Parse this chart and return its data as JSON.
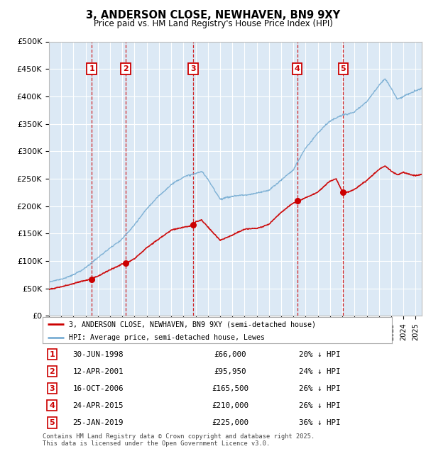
{
  "title1": "3, ANDERSON CLOSE, NEWHAVEN, BN9 9XY",
  "title2": "Price paid vs. HM Land Registry's House Price Index (HPI)",
  "ylim": [
    0,
    500000
  ],
  "yticks": [
    0,
    50000,
    100000,
    150000,
    200000,
    250000,
    300000,
    350000,
    400000,
    450000,
    500000
  ],
  "ytick_labels": [
    "£0",
    "£50K",
    "£100K",
    "£150K",
    "£200K",
    "£250K",
    "£300K",
    "£350K",
    "£400K",
    "£450K",
    "£500K"
  ],
  "xlim_start": 1995.0,
  "xlim_end": 2025.5,
  "background_color": "#dce9f5",
  "grid_color": "#ffffff",
  "red_line_color": "#cc0000",
  "blue_line_color": "#7bafd4",
  "sale_points": [
    {
      "num": 1,
      "year": 1998.49,
      "price": 66000
    },
    {
      "num": 2,
      "year": 2001.27,
      "price": 95950
    },
    {
      "num": 3,
      "year": 2006.79,
      "price": 165500
    },
    {
      "num": 4,
      "year": 2015.31,
      "price": 210000
    },
    {
      "num": 5,
      "year": 2019.07,
      "price": 225000
    }
  ],
  "legend_red": "3, ANDERSON CLOSE, NEWHAVEN, BN9 9XY (semi-detached house)",
  "legend_blue": "HPI: Average price, semi-detached house, Lewes",
  "table_rows": [
    {
      "num": 1,
      "date": "30-JUN-1998",
      "price": "£66,000",
      "hpi": "20% ↓ HPI"
    },
    {
      "num": 2,
      "date": "12-APR-2001",
      "price": "£95,950",
      "hpi": "24% ↓ HPI"
    },
    {
      "num": 3,
      "date": "16-OCT-2006",
      "price": "£165,500",
      "hpi": "26% ↓ HPI"
    },
    {
      "num": 4,
      "date": "24-APR-2015",
      "price": "£210,000",
      "hpi": "26% ↓ HPI"
    },
    {
      "num": 5,
      "date": "25-JAN-2019",
      "price": "£225,000",
      "hpi": "36% ↓ HPI"
    }
  ],
  "footnote": "Contains HM Land Registry data © Crown copyright and database right 2025.\nThis data is licensed under the Open Government Licence v3.0."
}
